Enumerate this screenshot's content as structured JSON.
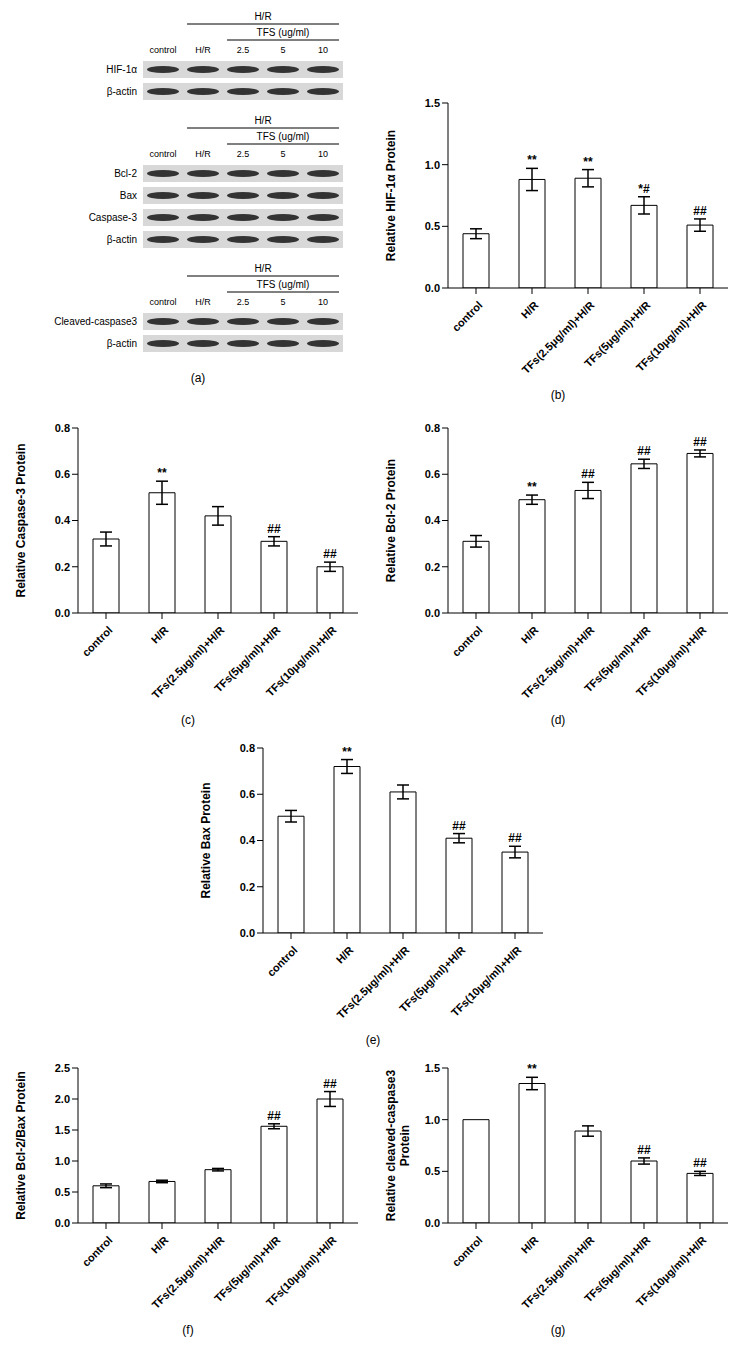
{
  "blots": {
    "caption": "(a)",
    "groups": [
      {
        "header": "H/R",
        "subheader": "TFS (ug/ml)",
        "lanes": [
          "control",
          "H/R",
          "2.5",
          "5",
          "10"
        ],
        "rows": [
          "HIF-1α",
          "β-actin"
        ]
      },
      {
        "header": "H/R",
        "subheader": "TFS (ug/ml)",
        "lanes": [
          "control",
          "H/R",
          "2.5",
          "5",
          "10"
        ],
        "rows": [
          "Bcl-2",
          "Bax",
          "Caspase-3",
          "β-actin"
        ]
      },
      {
        "header": "H/R",
        "subheader": "TFS (ug/ml)",
        "lanes": [
          "control",
          "H/R",
          "2.5",
          "5",
          "10"
        ],
        "rows": [
          "Cleaved-caspase3",
          "β-actin"
        ]
      }
    ]
  },
  "chart_data": [
    {
      "type": "bar",
      "caption": "(b)",
      "y_label": "Relative HIF-1α Protein",
      "color": "#ffffff",
      "grid": false,
      "categories": [
        "control",
        "H/R",
        "TFs(2.5μg/ml)+H/R",
        "TFs(5μg/ml)+H/R",
        "TFs(10μg/ml)+H/R"
      ],
      "values": [
        0.44,
        0.88,
        0.89,
        0.67,
        0.51
      ],
      "errors": [
        0.04,
        0.09,
        0.07,
        0.07,
        0.05
      ],
      "annotations": [
        null,
        "**",
        "**",
        "*#",
        "##"
      ],
      "ylim": [
        0,
        1.5
      ],
      "yticks": [
        {
          "value": 0,
          "label": "0.0"
        },
        {
          "value": 0.5,
          "label": "0.5"
        },
        {
          "value": 1,
          "label": "1.0"
        },
        {
          "value": 1.5,
          "label": "1.5"
        }
      ]
    },
    {
      "type": "bar",
      "caption": "(c)",
      "y_label": "Relative Caspase-3 Protein",
      "color": "#ffffff",
      "grid": false,
      "categories": [
        "control",
        "H/R",
        "TFs(2.5μg/ml)+H/R",
        "TFs(5μg/ml)+H/R",
        "TFs(10μg/ml)+H/R"
      ],
      "values": [
        0.32,
        0.52,
        0.42,
        0.31,
        0.2
      ],
      "errors": [
        0.03,
        0.05,
        0.04,
        0.02,
        0.02
      ],
      "annotations": [
        null,
        "**",
        null,
        "##",
        "##"
      ],
      "ylim": [
        0,
        0.8
      ],
      "yticks": [
        {
          "value": 0,
          "label": "0.0"
        },
        0.2,
        0.4,
        0.6,
        0.8
      ]
    },
    {
      "type": "bar",
      "caption": "(d)",
      "y_label": "Relative Bcl-2 Protein",
      "color": "#ffffff",
      "grid": false,
      "categories": [
        "control",
        "H/R",
        "TFs(2.5μg/ml)+H/R",
        "TFs(5μg/ml)+H/R",
        "TFs(10μg/ml)+H/R"
      ],
      "values": [
        0.31,
        0.49,
        0.53,
        0.645,
        0.69
      ],
      "errors": [
        0.025,
        0.02,
        0.035,
        0.02,
        0.015
      ],
      "annotations": [
        null,
        "**",
        "##",
        "##",
        "##"
      ],
      "ylim": [
        0,
        0.8
      ],
      "yticks": [
        {
          "value": 0,
          "label": "0.0"
        },
        0.2,
        0.4,
        0.6,
        0.8
      ]
    },
    {
      "type": "bar",
      "caption": "(e)",
      "y_label": "Relative Bax Protein",
      "color": "#ffffff",
      "grid": false,
      "categories": [
        "control",
        "H/R",
        "TFs(2.5μg/ml)+H/R",
        "TFs(5μg/ml)+H/R",
        "TFs(10μg/ml)+H/R"
      ],
      "values": [
        0.505,
        0.72,
        0.61,
        0.41,
        0.35
      ],
      "errors": [
        0.025,
        0.03,
        0.03,
        0.02,
        0.025
      ],
      "annotations": [
        null,
        "**",
        null,
        "##",
        "##"
      ],
      "ylim": [
        0,
        0.8
      ],
      "yticks": [
        {
          "value": 0,
          "label": "0.0"
        },
        0.2,
        0.4,
        0.6,
        0.8
      ]
    },
    {
      "type": "bar",
      "caption": "(f)",
      "y_label": "Relative Bcl-2/Bax Protein",
      "color": "#ffffff",
      "grid": false,
      "categories": [
        "control",
        "H/R",
        "TFs(2.5μg/ml)+H/R",
        "TFs(5μg/ml)+H/R",
        "TFs(10μg/ml)+H/R"
      ],
      "values": [
        0.6,
        0.67,
        0.86,
        1.56,
        2.0
      ],
      "errors": [
        0.03,
        0.02,
        0.02,
        0.04,
        0.12
      ],
      "annotations": [
        null,
        null,
        null,
        "##",
        "##"
      ],
      "ylim": [
        0,
        2.5
      ],
      "yticks": [
        {
          "value": 0,
          "label": "0.0"
        },
        0.5,
        {
          "value": 1,
          "label": "1.0"
        },
        1.5,
        {
          "value": 2,
          "label": "2.0"
        },
        2.5
      ]
    },
    {
      "type": "bar",
      "caption": "(g)",
      "y_label": "Relative cleaved-caspase3\nProtein",
      "color": "#ffffff",
      "grid": false,
      "categories": [
        "control",
        "H/R",
        "TFs(2.5μg/ml)+H/R",
        "TFs(5μg/ml)+H/R",
        "TFs(10μg/ml)+H/R"
      ],
      "values": [
        1.0,
        1.35,
        0.89,
        0.6,
        0.48
      ],
      "errors": [
        0,
        0.06,
        0.05,
        0.03,
        0.02
      ],
      "annotations": [
        null,
        "**",
        null,
        "##",
        "##"
      ],
      "ylim": [
        0,
        1.5
      ],
      "yticks": [
        {
          "value": 0,
          "label": "0.0"
        },
        0.5,
        {
          "value": 1,
          "label": "1.0"
        },
        1.5
      ]
    }
  ]
}
